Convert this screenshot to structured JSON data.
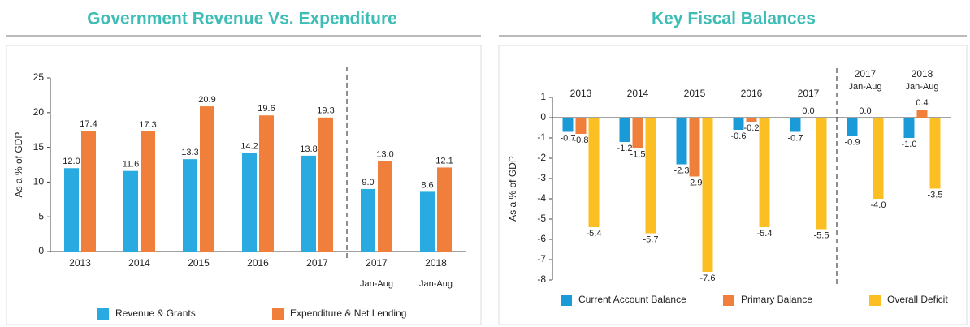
{
  "chart_data": [
    {
      "type": "bar",
      "title": "Government Revenue Vs. Expenditure",
      "ylabel": "As a % of GDP",
      "categories": [
        "2013",
        "2014",
        "2015",
        "2016",
        "2017",
        "2017",
        "2018"
      ],
      "period_labels": [
        null,
        null,
        null,
        null,
        null,
        "Jan-Aug",
        "Jan-Aug"
      ],
      "ylim": [
        0,
        25
      ],
      "yticks": [
        0,
        5,
        10,
        15,
        20,
        25
      ],
      "series": [
        {
          "name": "Revenue & Grants",
          "color": "#29abe2",
          "values": [
            12.0,
            11.6,
            13.3,
            14.2,
            13.8,
            9.0,
            8.6
          ],
          "value_labels": [
            "12.0",
            "11.6",
            "13.3",
            "14.2",
            "13.8",
            "9.0",
            "8.6"
          ]
        },
        {
          "name": "Expenditure & Net Lending",
          "color": "#f07f3c",
          "values": [
            17.4,
            17.3,
            20.9,
            19.6,
            19.3,
            13.0,
            12.1
          ],
          "value_labels": [
            "17.4",
            "17.3",
            "20.9",
            "19.6",
            "19.3",
            "13.0",
            "12.1"
          ]
        }
      ]
    },
    {
      "type": "bar",
      "title": "Key Fiscal Balances",
      "ylabel": "As a % of GDP",
      "categories": [
        "2013",
        "2014",
        "2015",
        "2016",
        "2017",
        "2017",
        "2018"
      ],
      "period_labels": [
        null,
        null,
        null,
        null,
        null,
        "Jan-Aug",
        "Jan-Aug"
      ],
      "ylim": [
        -8,
        1
      ],
      "yticks": [
        -8,
        -7,
        -6,
        -5,
        -4,
        -3,
        -2,
        -1,
        0,
        1
      ],
      "series": [
        {
          "name": "Current Account Balance",
          "color": "#1a9bd7",
          "values": [
            -0.7,
            -1.2,
            -2.3,
            -0.6,
            -0.7,
            -0.9,
            -1.0
          ],
          "value_labels": [
            "-0.7",
            "-1.2",
            "-2.3",
            "-0.6",
            "-0.7",
            "-0.9",
            "-1.0"
          ]
        },
        {
          "name": "Primary Balance",
          "color": "#f07f3c",
          "values": [
            -0.8,
            -1.5,
            -2.9,
            -0.2,
            0.0,
            0.0,
            0.4
          ],
          "value_labels": [
            "-0.8",
            "-1.5",
            "-2.9",
            "-0.2",
            "0.0",
            "0.0",
            "0.4"
          ]
        },
        {
          "name": "Overall Deficit",
          "color": "#fbbf24",
          "values": [
            -5.4,
            -5.7,
            -7.6,
            -5.4,
            -5.5,
            -4.0,
            -3.5
          ],
          "value_labels": [
            "-5.4",
            "-5.7",
            "-7.6",
            "-5.4",
            "-5.5",
            "-4.0",
            "-3.5"
          ]
        }
      ]
    }
  ]
}
